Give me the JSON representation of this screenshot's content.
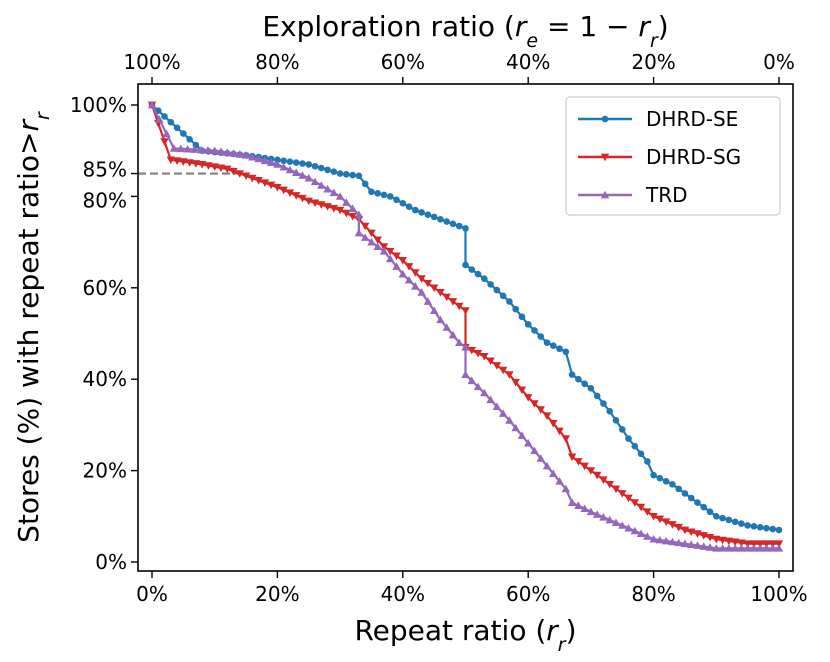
{
  "chart_data": {
    "type": "line",
    "xlabel": "Repeat ratio (r_r)",
    "ylabel": "Stores (%) with repeat ratio>r_r",
    "top_xlabel": "Exploration ratio (r_e = 1 − r_r)",
    "xlim": [
      0,
      1
    ],
    "ylim": [
      0,
      100
    ],
    "x_ticks": [
      0,
      0.2,
      0.4,
      0.6,
      0.8,
      1.0
    ],
    "x_tick_labels": [
      "0%",
      "20%",
      "40%",
      "60%",
      "80%",
      "100%"
    ],
    "top_tick_labels": [
      "100%",
      "80%",
      "60%",
      "40%",
      "20%",
      "0%"
    ],
    "y_ticks": [
      0,
      20,
      40,
      60,
      80,
      85,
      100
    ],
    "y_tick_labels": [
      "0%",
      "20%",
      "40%",
      "60%",
      "80%",
      "85%",
      "100%"
    ],
    "reference_line": {
      "y": 85,
      "x_end": 0.15,
      "style": "dashed"
    },
    "legend_position": "top-right",
    "series": [
      {
        "name": "DHRD-SE",
        "color": "#1f77b4",
        "marker": "circle",
        "x": [
          0,
          0.08,
          0.15,
          0.2,
          0.25,
          0.3,
          0.33,
          0.35,
          0.38,
          0.42,
          0.46,
          0.5,
          0.5,
          0.53,
          0.57,
          0.6,
          0.63,
          0.66,
          0.67,
          0.7,
          0.73,
          0.76,
          0.79,
          0.8,
          0.83,
          0.87,
          0.9,
          0.95,
          1.0
        ],
        "y": [
          100,
          90,
          89,
          88,
          87,
          85,
          84.5,
          81,
          80,
          77,
          75,
          73,
          65,
          62,
          57,
          52,
          48,
          46,
          41,
          38,
          33,
          27,
          22,
          19,
          17,
          13,
          10,
          8,
          7
        ]
      },
      {
        "name": "DHRD-SG",
        "color": "#d62728",
        "marker": "triangle-down",
        "x": [
          0,
          0.03,
          0.08,
          0.12,
          0.16,
          0.2,
          0.25,
          0.3,
          0.33,
          0.37,
          0.4,
          0.43,
          0.47,
          0.5,
          0.5,
          0.53,
          0.57,
          0.6,
          0.63,
          0.66,
          0.67,
          0.7,
          0.75,
          0.8,
          0.85,
          0.9,
          0.95,
          1.0
        ],
        "y": [
          100,
          88,
          87,
          86,
          84,
          82,
          79,
          77,
          75,
          69,
          66,
          62,
          58,
          55,
          47,
          45,
          41,
          36,
          32,
          27,
          23,
          20,
          15,
          10,
          7,
          5,
          4,
          4
        ]
      },
      {
        "name": "TRD",
        "color": "#9467bd",
        "marker": "triangle-up",
        "x": [
          0,
          0.035,
          0.1,
          0.15,
          0.2,
          0.25,
          0.3,
          0.33,
          0.33,
          0.37,
          0.4,
          0.43,
          0.46,
          0.49,
          0.5,
          0.5,
          0.53,
          0.57,
          0.6,
          0.63,
          0.66,
          0.67,
          0.7,
          0.75,
          0.8,
          0.85,
          0.9,
          0.95,
          1.0
        ],
        "y": [
          100,
          90.5,
          90,
          89,
          87,
          84,
          80,
          76,
          72,
          68,
          63,
          59,
          53,
          48,
          47,
          41,
          37,
          31,
          26,
          21,
          16,
          13,
          11,
          8,
          5,
          4,
          3,
          3,
          3
        ]
      }
    ]
  }
}
